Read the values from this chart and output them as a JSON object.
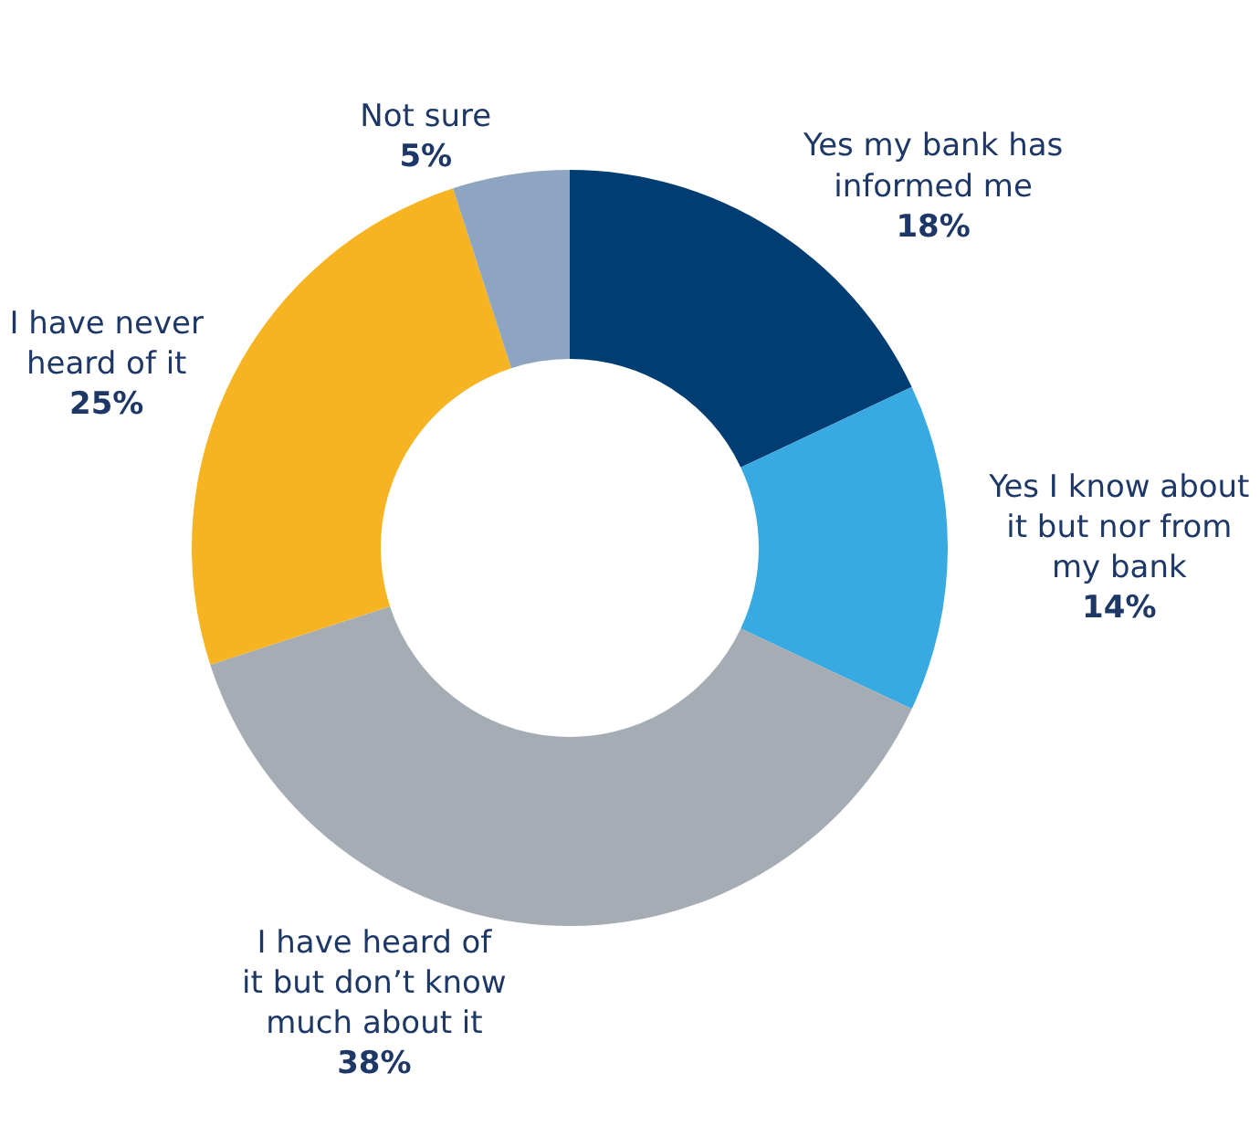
{
  "chart_data": {
    "type": "donut",
    "categories": [
      "Yes my bank has informed me",
      "Yes I know about it but nor from my bank",
      "I have heard of it but don’t know much about it",
      "I have never heard of it",
      "Not sure"
    ],
    "values": [
      18,
      14,
      38,
      25,
      5
    ],
    "colors": [
      "#003d73",
      "#38a9e1",
      "#a5acb3",
      "#f6b322",
      "#8ea5c2"
    ],
    "value_labels": [
      "18%",
      "14%",
      "38%",
      "25%",
      "5%"
    ],
    "legend": false
  }
}
